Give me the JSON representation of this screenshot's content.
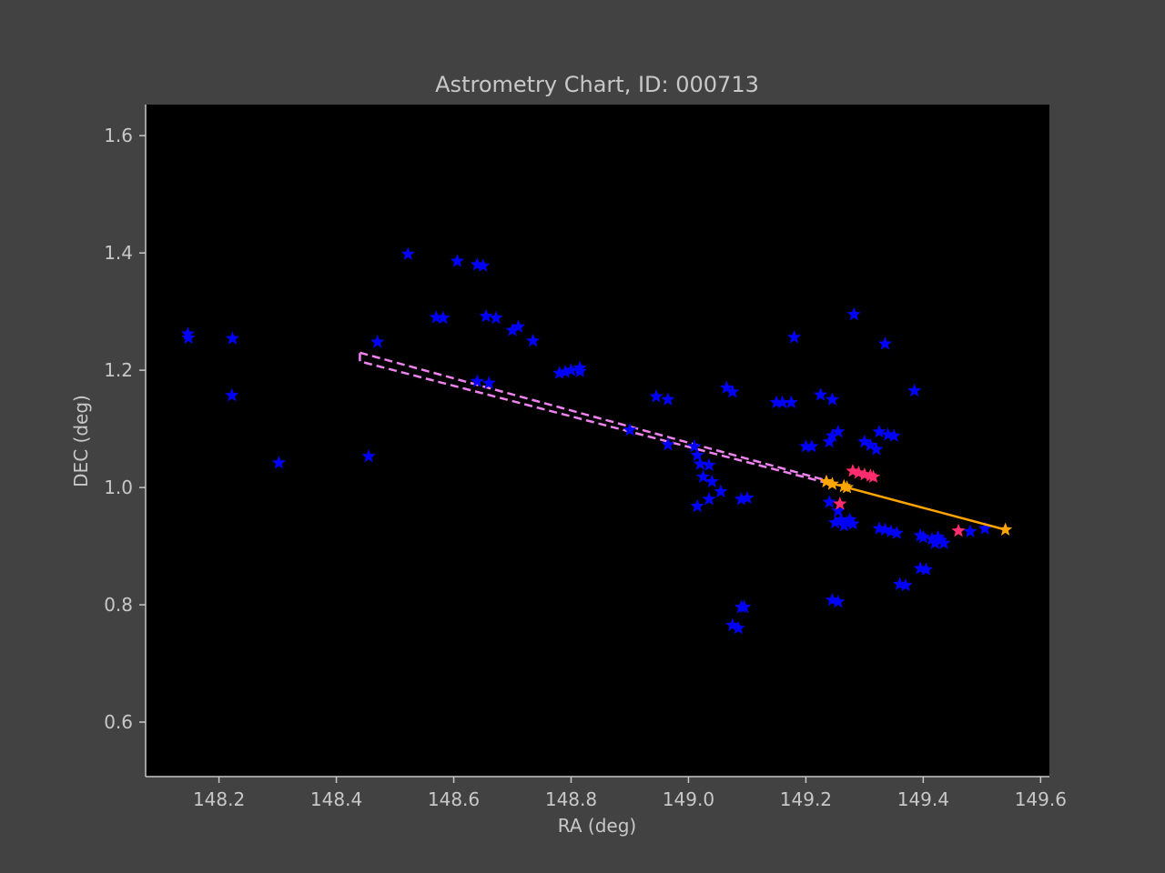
{
  "chart_data": {
    "type": "scatter",
    "title": "Astrometry Chart, ID: 000713",
    "xlabel": "RA (deg)",
    "ylabel": "DEC (deg)",
    "xlim": [
      148.075,
      149.615
    ],
    "ylim": [
      0.507,
      1.653
    ],
    "xticks": [
      148.2,
      148.4,
      148.6,
      148.8,
      149.0,
      149.2,
      149.4,
      149.6
    ],
    "xtick_labels": [
      "148.2",
      "148.4",
      "148.6",
      "148.8",
      "149.0",
      "149.2",
      "149.4",
      "149.6"
    ],
    "yticks": [
      0.6,
      0.8,
      1.0,
      1.2,
      1.4,
      1.6
    ],
    "ytick_labels": [
      "0.6",
      "0.8",
      "1.0",
      "1.2",
      "1.4",
      "1.6"
    ],
    "grid": false,
    "colors": {
      "figure_bg": "#424242",
      "axes_bg": "#000000",
      "axes_edge": "#c8c8c8",
      "text": "#c8c8c8",
      "stars": "#0000ff",
      "highlight": "#ff2d6e",
      "track": "#ffa500",
      "projection": "#ee82ee"
    },
    "series": [
      {
        "marker": "star-icon",
        "color": "#0000ff",
        "points": [
          [
            148.147,
            1.262
          ],
          [
            148.148,
            1.255
          ],
          [
            148.223,
            1.254
          ],
          [
            148.222,
            1.157
          ],
          [
            148.302,
            1.042
          ],
          [
            148.455,
            1.053
          ],
          [
            148.47,
            1.248
          ],
          [
            148.522,
            1.398
          ],
          [
            148.57,
            1.29
          ],
          [
            148.582,
            1.289
          ],
          [
            148.606,
            1.386
          ],
          [
            148.64,
            1.38
          ],
          [
            148.65,
            1.378
          ],
          [
            148.655,
            1.292
          ],
          [
            148.672,
            1.289
          ],
          [
            148.64,
            1.181
          ],
          [
            148.66,
            1.178
          ],
          [
            148.7,
            1.268
          ],
          [
            148.71,
            1.274
          ],
          [
            148.735,
            1.25
          ],
          [
            148.78,
            1.195
          ],
          [
            148.79,
            1.197
          ],
          [
            148.8,
            1.2
          ],
          [
            148.815,
            1.204
          ],
          [
            148.815,
            1.198
          ],
          [
            148.9,
            1.098
          ],
          [
            148.945,
            1.155
          ],
          [
            148.965,
            1.15
          ],
          [
            148.965,
            1.073
          ],
          [
            149.01,
            1.07
          ],
          [
            149.015,
            1.055
          ],
          [
            149.02,
            1.04
          ],
          [
            149.035,
            1.038
          ],
          [
            149.025,
            1.018
          ],
          [
            149.04,
            1.01
          ],
          [
            149.055,
            0.993
          ],
          [
            149.015,
            0.968
          ],
          [
            149.035,
            0.98
          ],
          [
            149.09,
            0.98
          ],
          [
            149.1,
            0.982
          ],
          [
            149.065,
            1.17
          ],
          [
            149.075,
            1.163
          ],
          [
            149.09,
            0.796
          ],
          [
            149.095,
            0.796
          ],
          [
            149.075,
            0.765
          ],
          [
            149.085,
            0.76
          ],
          [
            149.15,
            1.145
          ],
          [
            149.16,
            1.145
          ],
          [
            149.175,
            1.145
          ],
          [
            149.18,
            1.256
          ],
          [
            149.2,
            1.07
          ],
          [
            149.21,
            1.07
          ],
          [
            149.225,
            1.158
          ],
          [
            149.245,
            1.15
          ],
          [
            149.24,
            1.078
          ],
          [
            149.245,
            1.088
          ],
          [
            149.255,
            1.095
          ],
          [
            149.24,
            0.975
          ],
          [
            149.255,
            0.96
          ],
          [
            149.25,
            0.94
          ],
          [
            149.26,
            0.945
          ],
          [
            149.27,
            0.94
          ],
          [
            149.275,
            0.945
          ],
          [
            149.265,
            0.935
          ],
          [
            149.28,
            0.938
          ],
          [
            149.245,
            0.808
          ],
          [
            149.255,
            0.805
          ],
          [
            149.282,
            1.295
          ],
          [
            149.3,
            1.078
          ],
          [
            149.31,
            1.072
          ],
          [
            149.32,
            1.065
          ],
          [
            149.325,
            1.095
          ],
          [
            149.34,
            1.09
          ],
          [
            149.35,
            1.088
          ],
          [
            149.335,
            1.245
          ],
          [
            149.325,
            0.93
          ],
          [
            149.335,
            0.928
          ],
          [
            149.345,
            0.925
          ],
          [
            149.355,
            0.922
          ],
          [
            149.36,
            0.835
          ],
          [
            149.37,
            0.833
          ],
          [
            149.385,
            1.165
          ],
          [
            149.395,
            0.918
          ],
          [
            149.4,
            0.915
          ],
          [
            149.415,
            0.912
          ],
          [
            149.42,
            0.905
          ],
          [
            149.43,
            0.91
          ],
          [
            149.435,
            0.905
          ],
          [
            149.425,
            0.915
          ],
          [
            149.395,
            0.862
          ],
          [
            149.405,
            0.86
          ],
          [
            149.48,
            0.925
          ],
          [
            149.505,
            0.93
          ]
        ]
      },
      {
        "marker": "star-icon",
        "color": "#ff2d6e",
        "points": [
          [
            149.28,
            1.028
          ],
          [
            149.29,
            1.025
          ],
          [
            149.3,
            1.022
          ],
          [
            149.31,
            1.02
          ],
          [
            149.315,
            1.018
          ],
          [
            149.258,
            0.972
          ],
          [
            149.46,
            0.926
          ]
        ]
      }
    ],
    "track": {
      "color": "#ffa500",
      "points": [
        [
          149.235,
          1.01
        ],
        [
          149.245,
          1.006
        ],
        [
          149.265,
          1.002
        ],
        [
          149.27,
          1.0
        ],
        [
          149.54,
          0.928
        ]
      ]
    },
    "projection": {
      "color": "#ee82ee",
      "style": "dashed",
      "points": [
        [
          148.44,
          1.23
        ],
        [
          149.235,
          1.012
        ],
        [
          149.235,
          1.008
        ],
        [
          148.44,
          1.215
        ]
      ]
    }
  }
}
